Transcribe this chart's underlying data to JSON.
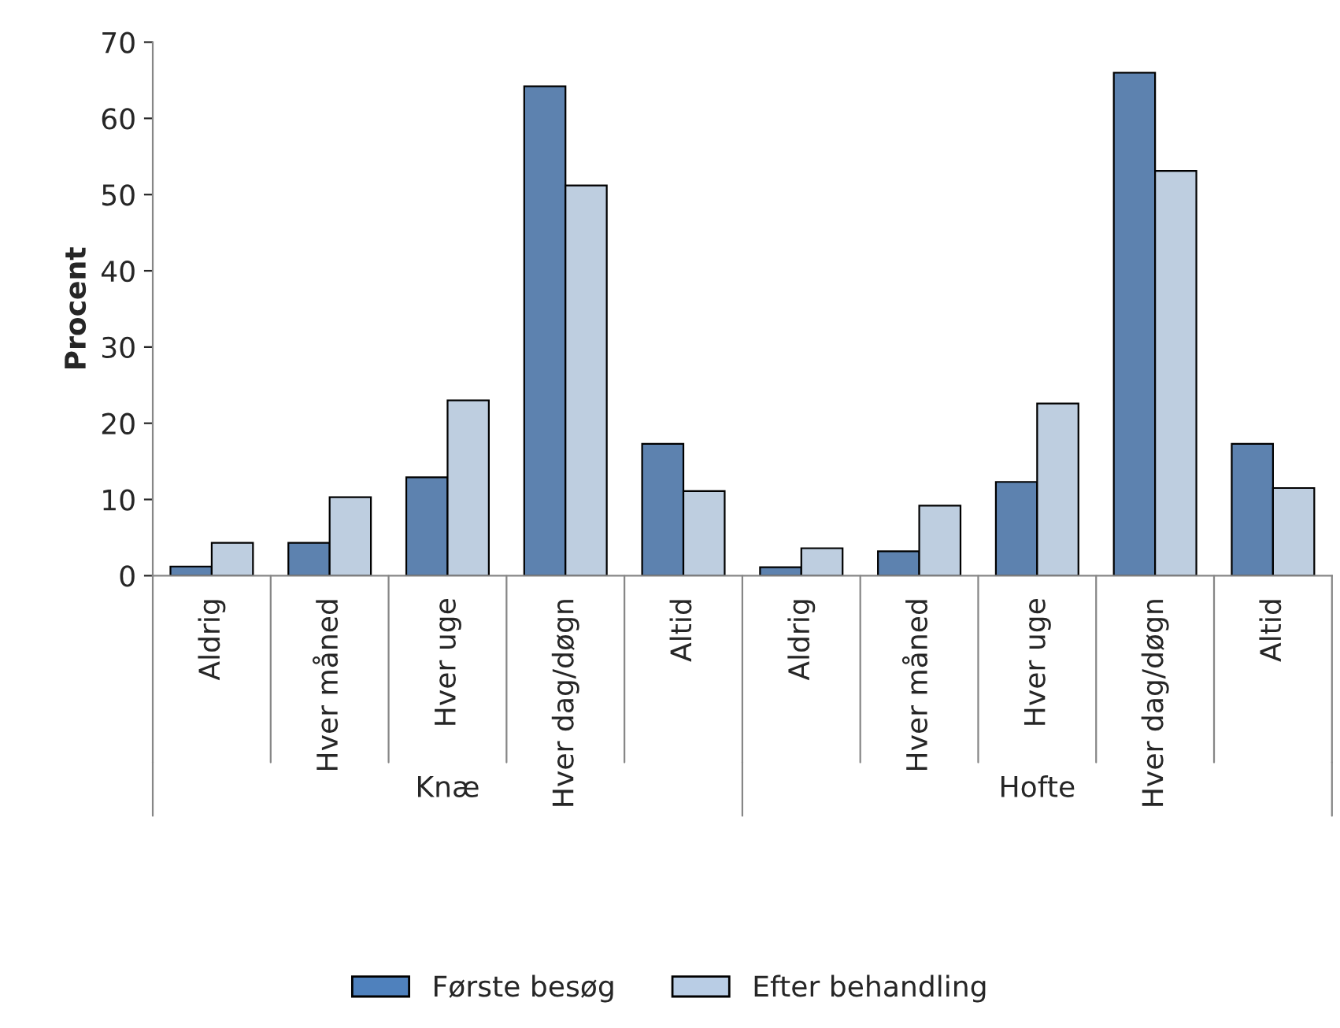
{
  "chart_data": {
    "type": "bar",
    "ylabel": "Procent",
    "categories": [
      "Aldrig",
      "Hver måned",
      "Hver uge",
      "Hver dag/døgn",
      "Altid",
      "Aldrig",
      "Hver måned",
      "Hver uge",
      "Hver dag/døgn",
      "Altid"
    ],
    "series": [
      {
        "name": "Første besøg",
        "color": "#4f81bd",
        "values": [
          1.2,
          4.3,
          12.9,
          64.2,
          17.3,
          1.1,
          3.2,
          12.3,
          66.0,
          17.3
        ]
      },
      {
        "name": "Efter behandling",
        "color": "#b9cde5",
        "values": [
          4.3,
          10.3,
          23.0,
          51.2,
          11.1,
          3.6,
          9.2,
          22.6,
          53.1,
          11.5
        ]
      }
    ],
    "annotations": [
      "Knæ",
      "Hofte"
    ],
    "ylim": [
      0,
      70
    ],
    "yticks": [
      0,
      10,
      20,
      30,
      40,
      50,
      60,
      70
    ],
    "grid": false,
    "legend": "bottom"
  }
}
